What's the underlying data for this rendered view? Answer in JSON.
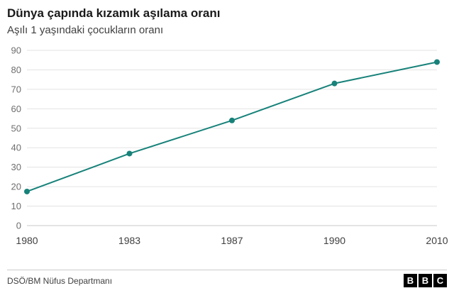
{
  "header": {
    "title": "Dünya çapında kızamık aşılama oranı",
    "subtitle": "Aşılı 1 yaşındaki çocukların oranı"
  },
  "chart_data": {
    "type": "line",
    "title": "Dünya çapında kızamık aşılama oranı",
    "subtitle": "Aşılı 1 yaşındaki çocukların oranı",
    "categories": [
      "1980",
      "1983",
      "1987",
      "1990",
      "2010"
    ],
    "series": [
      {
        "name": "Aşılı 1 yaşındaki çocukların oranı",
        "values": [
          17.5,
          37,
          54,
          73,
          84
        ]
      }
    ],
    "xlabel": "",
    "ylabel": "",
    "ylim": [
      0,
      90
    ],
    "yticks": [
      0,
      10,
      20,
      30,
      40,
      50,
      60,
      70,
      80,
      90
    ],
    "grid": true,
    "legend_position": "none",
    "line_color": "#17827a",
    "grid_color": "#e3e3e3",
    "baseline_color": "#c9c9c9",
    "marker": "circle"
  },
  "footer": {
    "source": "DSÖ/BM Nüfus Departmanı",
    "logo_letters": [
      "B",
      "B",
      "C"
    ]
  }
}
